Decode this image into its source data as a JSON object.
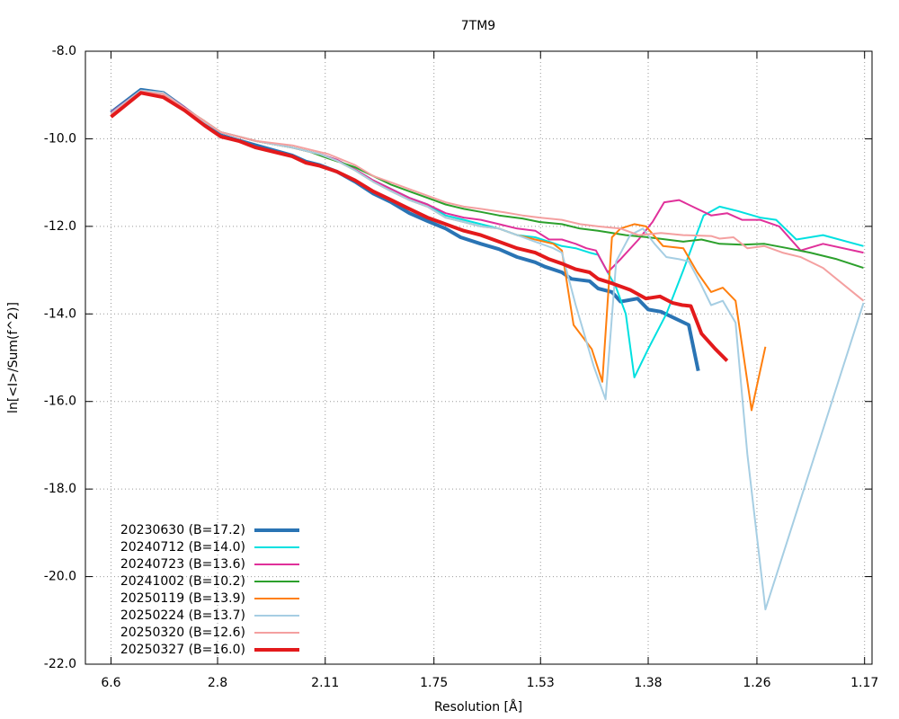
{
  "chart_data": {
    "type": "line",
    "title": "7TM9",
    "x_label": "Resolution [Å]",
    "y_label": "ln[<I>/Sum(f^2)]",
    "xlim": [
      0,
      0.738
    ],
    "ylim": [
      -22,
      -8
    ],
    "grid": true,
    "legend": "lower left",
    "xticks": [
      {
        "value": 0.024,
        "label": "6.6"
      },
      {
        "value": 0.124,
        "label": "2.8"
      },
      {
        "value": 0.225,
        "label": "2.11"
      },
      {
        "value": 0.327,
        "label": "1.75"
      },
      {
        "value": 0.427,
        "label": "1.53"
      },
      {
        "value": 0.528,
        "label": "1.38"
      },
      {
        "value": 0.63,
        "label": "1.26"
      },
      {
        "value": 0.731,
        "label": "1.17"
      }
    ],
    "yticks": [
      {
        "value": -8,
        "label": "-8.0"
      },
      {
        "value": -10,
        "label": "-10.0"
      },
      {
        "value": -12,
        "label": "-12.0"
      },
      {
        "value": -14,
        "label": "-14.0"
      },
      {
        "value": -16,
        "label": "-16.0"
      },
      {
        "value": -18,
        "label": "-18.0"
      },
      {
        "value": -20,
        "label": "-20.0"
      },
      {
        "value": -22,
        "label": "-22.0"
      }
    ],
    "series": [
      {
        "name": "20230630 (B=17.2)",
        "color": "#2a74b4",
        "width": 4,
        "x": [
          0.024,
          0.052,
          0.073,
          0.093,
          0.112,
          0.127,
          0.16,
          0.194,
          0.207,
          0.22,
          0.236,
          0.253,
          0.27,
          0.287,
          0.304,
          0.321,
          0.338,
          0.352,
          0.371,
          0.388,
          0.405,
          0.422,
          0.431,
          0.447,
          0.456,
          0.473,
          0.481,
          0.494,
          0.502,
          0.518,
          0.528,
          0.54,
          0.553,
          0.566,
          0.575
        ],
        "values": [
          -9.4,
          -8.88,
          -8.95,
          -9.3,
          -9.65,
          -9.92,
          -10.15,
          -10.38,
          -10.52,
          -10.6,
          -10.75,
          -10.98,
          -11.25,
          -11.45,
          -11.7,
          -11.88,
          -12.05,
          -12.25,
          -12.4,
          -12.52,
          -12.7,
          -12.82,
          -12.92,
          -13.05,
          -13.2,
          -13.25,
          -13.42,
          -13.5,
          -13.72,
          -13.65,
          -13.9,
          -13.95,
          -14.1,
          -14.25,
          -15.3
        ]
      },
      {
        "name": "20240712 (B=14.0)",
        "color": "#00e0e0",
        "width": 2,
        "x": [
          0.024,
          0.052,
          0.073,
          0.093,
          0.112,
          0.127,
          0.16,
          0.194,
          0.22,
          0.236,
          0.253,
          0.27,
          0.287,
          0.304,
          0.321,
          0.338,
          0.355,
          0.371,
          0.388,
          0.405,
          0.422,
          0.435,
          0.447,
          0.46,
          0.473,
          0.481,
          0.49,
          0.498,
          0.507,
          0.515,
          0.528,
          0.545,
          0.561,
          0.58,
          0.595,
          0.612,
          0.633,
          0.648,
          0.667,
          0.692,
          0.73
        ],
        "values": [
          -9.4,
          -8.9,
          -8.95,
          -9.28,
          -9.62,
          -9.85,
          -10.05,
          -10.2,
          -10.35,
          -10.48,
          -10.7,
          -10.95,
          -11.15,
          -11.35,
          -11.5,
          -11.75,
          -11.85,
          -11.95,
          -12.05,
          -12.2,
          -12.25,
          -12.35,
          -12.45,
          -12.5,
          -12.6,
          -12.65,
          -13.05,
          -13.4,
          -14.0,
          -15.45,
          -14.8,
          -14.0,
          -13.0,
          -11.75,
          -11.55,
          -11.65,
          -11.8,
          -11.85,
          -12.3,
          -12.2,
          -12.45
        ]
      },
      {
        "name": "20240723 (B=13.6)",
        "color": "#e0309a",
        "width": 2,
        "x": [
          0.024,
          0.052,
          0.073,
          0.093,
          0.112,
          0.127,
          0.16,
          0.194,
          0.22,
          0.236,
          0.253,
          0.27,
          0.287,
          0.304,
          0.321,
          0.338,
          0.355,
          0.371,
          0.388,
          0.405,
          0.422,
          0.435,
          0.447,
          0.46,
          0.47,
          0.479,
          0.49,
          0.502,
          0.519,
          0.532,
          0.543,
          0.557,
          0.574,
          0.587,
          0.602,
          0.616,
          0.633,
          0.651,
          0.671,
          0.692,
          0.73
        ],
        "values": [
          -9.4,
          -8.9,
          -8.95,
          -9.28,
          -9.62,
          -9.85,
          -10.05,
          -10.2,
          -10.35,
          -10.48,
          -10.7,
          -10.95,
          -11.15,
          -11.35,
          -11.5,
          -11.7,
          -11.8,
          -11.85,
          -11.95,
          -12.05,
          -12.1,
          -12.3,
          -12.3,
          -12.4,
          -12.5,
          -12.55,
          -13.05,
          -12.75,
          -12.3,
          -11.9,
          -11.45,
          -11.4,
          -11.6,
          -11.75,
          -11.7,
          -11.85,
          -11.85,
          -12.0,
          -12.55,
          -12.4,
          -12.6
        ]
      },
      {
        "name": "20241002 (B=10.2)",
        "color": "#2ca02c",
        "width": 2,
        "x": [
          0.024,
          0.052,
          0.073,
          0.093,
          0.112,
          0.127,
          0.16,
          0.194,
          0.211,
          0.228,
          0.253,
          0.27,
          0.287,
          0.304,
          0.321,
          0.338,
          0.355,
          0.371,
          0.388,
          0.41,
          0.426,
          0.447,
          0.464,
          0.481,
          0.507,
          0.528,
          0.545,
          0.561,
          0.578,
          0.595,
          0.616,
          0.637,
          0.659,
          0.68,
          0.705,
          0.73
        ],
        "values": [
          -9.45,
          -8.92,
          -8.98,
          -9.3,
          -9.6,
          -9.85,
          -10.05,
          -10.2,
          -10.3,
          -10.45,
          -10.65,
          -10.85,
          -11.05,
          -11.2,
          -11.35,
          -11.5,
          -11.6,
          -11.67,
          -11.75,
          -11.82,
          -11.9,
          -11.95,
          -12.05,
          -12.1,
          -12.2,
          -12.25,
          -12.3,
          -12.35,
          -12.3,
          -12.4,
          -12.42,
          -12.4,
          -12.5,
          -12.6,
          -12.75,
          -12.95
        ]
      },
      {
        "name": "20250119 (B=13.9)",
        "color": "#ff7f0e",
        "width": 2,
        "x": [
          0.024,
          0.052,
          0.073,
          0.093,
          0.112,
          0.127,
          0.16,
          0.194,
          0.22,
          0.236,
          0.253,
          0.27,
          0.287,
          0.304,
          0.321,
          0.338,
          0.355,
          0.371,
          0.388,
          0.405,
          0.422,
          0.439,
          0.447,
          0.458,
          0.475,
          0.485,
          0.494,
          0.502,
          0.515,
          0.526,
          0.542,
          0.561,
          0.574,
          0.587,
          0.598,
          0.61,
          0.625,
          0.638
        ],
        "values": [
          -9.42,
          -8.9,
          -8.95,
          -9.3,
          -9.62,
          -9.85,
          -10.05,
          -10.2,
          -10.35,
          -10.5,
          -10.72,
          -10.98,
          -11.2,
          -11.4,
          -11.55,
          -11.8,
          -11.9,
          -12.0,
          -12.05,
          -12.2,
          -12.3,
          -12.4,
          -12.55,
          -14.25,
          -14.8,
          -15.55,
          -12.25,
          -12.05,
          -11.95,
          -12.0,
          -12.45,
          -12.5,
          -13.05,
          -13.5,
          -13.4,
          -13.7,
          -16.2,
          -14.75
        ]
      },
      {
        "name": "20250224 (B=13.7)",
        "color": "#a6cee3",
        "width": 2,
        "x": [
          0.024,
          0.052,
          0.073,
          0.093,
          0.112,
          0.127,
          0.16,
          0.194,
          0.22,
          0.236,
          0.253,
          0.27,
          0.287,
          0.304,
          0.321,
          0.338,
          0.355,
          0.371,
          0.388,
          0.405,
          0.422,
          0.439,
          0.447,
          0.46,
          0.477,
          0.488,
          0.498,
          0.511,
          0.523,
          0.534,
          0.545,
          0.557,
          0.566,
          0.577,
          0.587,
          0.598,
          0.61,
          0.621,
          0.638,
          0.73
        ],
        "values": [
          -9.42,
          -8.9,
          -8.95,
          -9.3,
          -9.62,
          -9.85,
          -10.05,
          -10.2,
          -10.35,
          -10.5,
          -10.72,
          -10.98,
          -11.2,
          -11.4,
          -11.55,
          -11.8,
          -11.9,
          -12.0,
          -12.05,
          -12.2,
          -12.35,
          -12.5,
          -12.6,
          -13.8,
          -15.2,
          -15.95,
          -12.8,
          -12.2,
          -12.05,
          -12.4,
          -12.7,
          -12.75,
          -12.8,
          -13.3,
          -13.8,
          -13.7,
          -14.2,
          -17.2,
          -20.75,
          -13.75
        ]
      },
      {
        "name": "20250320 (B=12.6)",
        "color": "#f4a0a0",
        "width": 2,
        "x": [
          0.024,
          0.052,
          0.073,
          0.093,
          0.112,
          0.127,
          0.16,
          0.194,
          0.228,
          0.253,
          0.27,
          0.287,
          0.304,
          0.321,
          0.338,
          0.355,
          0.371,
          0.393,
          0.41,
          0.426,
          0.447,
          0.464,
          0.481,
          0.502,
          0.519,
          0.54,
          0.561,
          0.587,
          0.595,
          0.608,
          0.621,
          0.637,
          0.654,
          0.671,
          0.692,
          0.73
        ],
        "values": [
          -9.45,
          -8.92,
          -8.98,
          -9.3,
          -9.6,
          -9.85,
          -10.05,
          -10.15,
          -10.35,
          -10.6,
          -10.85,
          -11.0,
          -11.15,
          -11.3,
          -11.45,
          -11.55,
          -11.6,
          -11.68,
          -11.75,
          -11.8,
          -11.85,
          -11.95,
          -12.0,
          -12.05,
          -12.2,
          -12.15,
          -12.2,
          -12.22,
          -12.28,
          -12.25,
          -12.5,
          -12.45,
          -12.6,
          -12.7,
          -12.95,
          -13.7
        ]
      },
      {
        "name": "20250327 (B=16.0)",
        "color": "#e31a1c",
        "width": 4,
        "x": [
          0.024,
          0.052,
          0.073,
          0.093,
          0.112,
          0.127,
          0.144,
          0.16,
          0.177,
          0.194,
          0.207,
          0.22,
          0.236,
          0.253,
          0.27,
          0.287,
          0.304,
          0.321,
          0.338,
          0.355,
          0.371,
          0.388,
          0.405,
          0.422,
          0.435,
          0.447,
          0.46,
          0.473,
          0.481,
          0.494,
          0.511,
          0.526,
          0.539,
          0.551,
          0.56,
          0.568,
          0.578,
          0.591,
          0.602
        ],
        "values": [
          -9.5,
          -8.95,
          -9.05,
          -9.35,
          -9.7,
          -9.95,
          -10.05,
          -10.2,
          -10.3,
          -10.4,
          -10.55,
          -10.62,
          -10.75,
          -10.95,
          -11.2,
          -11.4,
          -11.6,
          -11.8,
          -11.95,
          -12.1,
          -12.2,
          -12.35,
          -12.5,
          -12.6,
          -12.75,
          -12.85,
          -12.98,
          -13.05,
          -13.2,
          -13.3,
          -13.45,
          -13.65,
          -13.6,
          -13.75,
          -13.8,
          -13.82,
          -14.45,
          -14.8,
          -15.07
        ]
      }
    ]
  }
}
